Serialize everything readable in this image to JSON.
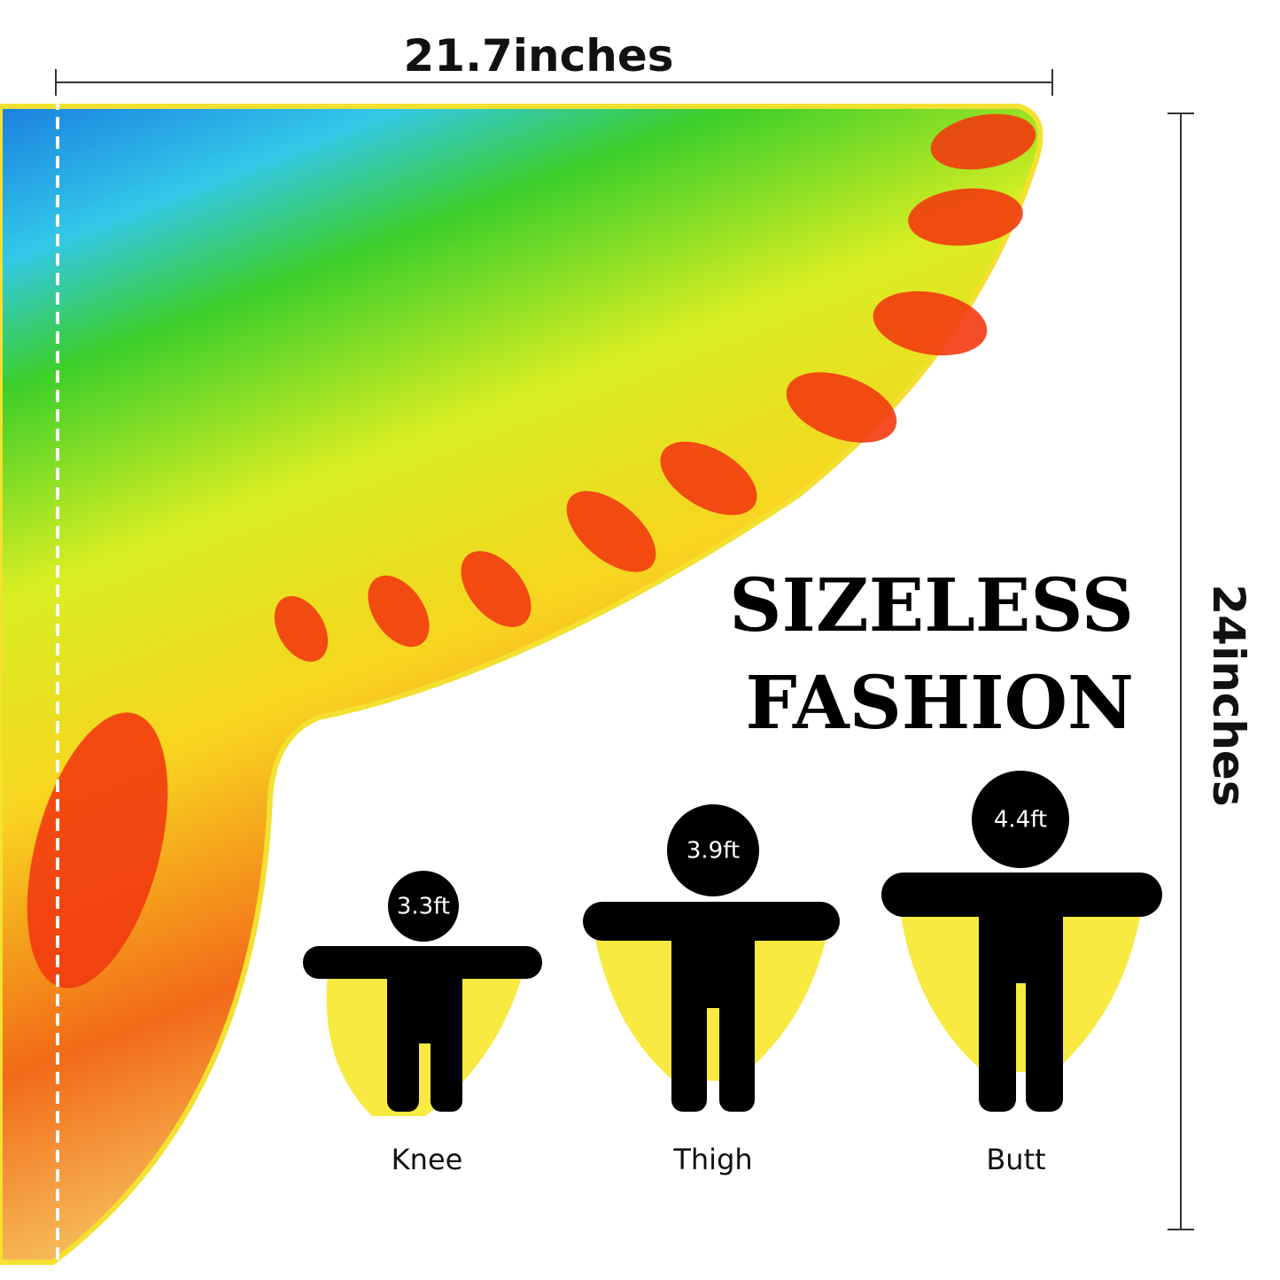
{
  "dimensions": {
    "width": "21.7inches",
    "height": "24inches"
  },
  "headline": [
    "SIZELESS",
    "FASHION"
  ],
  "figures": [
    {
      "height": "3.3ft",
      "label": "Knee"
    },
    {
      "height": "3.9ft",
      "label": "Thigh"
    },
    {
      "height": "4.4ft",
      "label": "Butt"
    }
  ]
}
